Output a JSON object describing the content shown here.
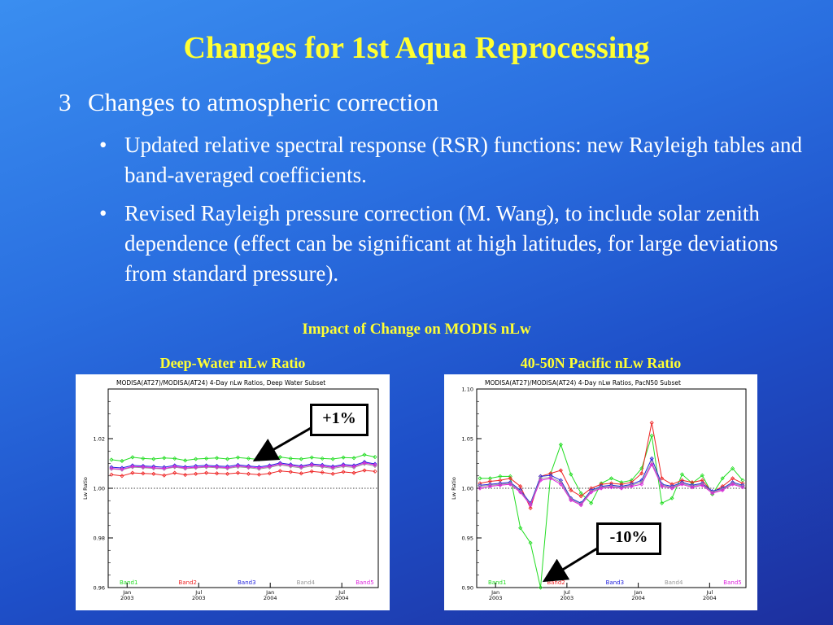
{
  "slide": {
    "title": "Changes for 1st Aqua Reprocessing",
    "heading_num": "3",
    "heading": "Changes to atmospheric correction",
    "bullets": [
      "Updated relative spectral response (RSR) functions: new Rayleigh tables and band-averaged coefficients.",
      "Revised Rayleigh pressure correction (M. Wang), to include solar zenith dependence (effect can be significant at high latitudes, for large deviations from standard pressure)."
    ],
    "bullet_symbol": "•",
    "impact_title": "Impact of Change on MODIS nLw"
  },
  "chart_data": [
    {
      "type": "line",
      "title": "Deep-Water nLw Ratio",
      "plot_title": "MODISA(AT27)/MODISA(AT24)  4-Day nLw Ratios, Deep Water Subset",
      "ylabel": "Lw Ratio",
      "ylim": [
        0.96,
        1.04
      ],
      "yticks": [
        "0.96",
        "0.98",
        "1.00",
        "1.02"
      ],
      "ytick_values": [
        0.96,
        0.98,
        1.0,
        1.02
      ],
      "xticks": [
        {
          "top": "Jan",
          "bottom": "2003"
        },
        {
          "top": "Jul",
          "bottom": "2003"
        },
        {
          "top": "Jan",
          "bottom": "2004"
        },
        {
          "top": "Jul",
          "bottom": "2004"
        }
      ],
      "reference_line": 1.0,
      "callout": "+1%",
      "series": [
        {
          "name": "Band1",
          "color": "#22dd22",
          "values": [
            1.0115,
            1.011,
            1.0125,
            1.012,
            1.0118,
            1.0122,
            1.012,
            1.0112,
            1.0118,
            1.012,
            1.0122,
            1.0118,
            1.0124,
            1.012,
            1.0116,
            1.0122,
            1.0126,
            1.012,
            1.0118,
            1.0124,
            1.012,
            1.0118,
            1.0124,
            1.0122,
            1.0135,
            1.0126
          ]
        },
        {
          "name": "Band2",
          "color": "#ee2222",
          "values": [
            1.0055,
            1.005,
            1.0062,
            1.006,
            1.0058,
            1.0052,
            1.0062,
            1.0054,
            1.0058,
            1.0062,
            1.006,
            1.0058,
            1.0062,
            1.0058,
            1.0055,
            1.006,
            1.007,
            1.0066,
            1.006,
            1.0068,
            1.0064,
            1.0058,
            1.0066,
            1.0062,
            1.0072,
            1.0068
          ]
        },
        {
          "name": "Band3",
          "color": "#2222dd",
          "values": [
            1.0085,
            1.0082,
            1.0092,
            1.009,
            1.0088,
            1.0085,
            1.0092,
            1.0086,
            1.009,
            1.0092,
            1.009,
            1.0088,
            1.0094,
            1.009,
            1.0086,
            1.0092,
            1.0102,
            1.0096,
            1.009,
            1.0098,
            1.0094,
            1.0088,
            1.0096,
            1.0092,
            1.0106,
            1.0098
          ]
        },
        {
          "name": "Band4",
          "color": "#999999",
          "values": [
            1.0078,
            1.0075,
            1.0085,
            1.0083,
            1.008,
            1.0078,
            1.0085,
            1.0079,
            1.0082,
            1.0085,
            1.0083,
            1.008,
            1.0086,
            1.0083,
            1.0078,
            1.0084,
            1.0094,
            1.0088,
            1.0082,
            1.009,
            1.0086,
            1.008,
            1.0088,
            1.0084,
            1.0098,
            1.009
          ]
        },
        {
          "name": "Band5",
          "color": "#dd22dd",
          "values": [
            1.008,
            1.0077,
            1.0088,
            1.0086,
            1.0083,
            1.008,
            1.0088,
            1.0082,
            1.0085,
            1.0088,
            1.0086,
            1.0083,
            1.009,
            1.0086,
            1.0082,
            1.0088,
            1.0098,
            1.0092,
            1.0086,
            1.0094,
            1.009,
            1.0084,
            1.0092,
            1.0088,
            1.0102,
            1.0094
          ]
        }
      ]
    },
    {
      "type": "line",
      "title": "40-50N Pacific nLw Ratio",
      "plot_title": "MODISA(AT27)/MODISA(AT24)  4-Day nLw Ratios, PacN50 Subset",
      "ylabel": "Lw Ratio",
      "ylim": [
        0.9,
        1.1
      ],
      "yticks": [
        "0.90",
        "0.95",
        "1.00",
        "1.05",
        "1.10"
      ],
      "ytick_values": [
        0.9,
        0.95,
        1.0,
        1.05,
        1.1
      ],
      "xticks": [
        {
          "top": "Jan",
          "bottom": "2003"
        },
        {
          "top": "Jul",
          "bottom": "2003"
        },
        {
          "top": "Jan",
          "bottom": "2004"
        },
        {
          "top": "Jul",
          "bottom": "2004"
        }
      ],
      "reference_line": 1.0,
      "callout": "-10%",
      "series": [
        {
          "name": "Band1",
          "color": "#22dd22",
          "values": [
            1.01,
            1.01,
            1.012,
            1.012,
            0.96,
            0.945,
            0.9,
            1.015,
            1.044,
            1.014,
            0.995,
            0.985,
            1.005,
            1.01,
            1.006,
            1.008,
            1.02,
            1.053,
            0.985,
            0.99,
            1.014,
            1.005,
            1.013,
            0.994,
            1.01,
            1.02,
            1.008
          ]
        },
        {
          "name": "Band2",
          "color": "#ee2222",
          "values": [
            1.005,
            1.007,
            1.008,
            1.01,
            1.002,
            0.98,
            1.012,
            1.015,
            1.018,
            0.998,
            0.992,
            1.0,
            1.004,
            1.005,
            1.004,
            1.006,
            1.015,
            1.066,
            1.01,
            1.004,
            1.008,
            1.006,
            1.008,
            0.996,
            1.002,
            1.01,
            1.005
          ]
        },
        {
          "name": "Band3",
          "color": "#2222dd",
          "values": [
            1.003,
            1.004,
            1.005,
            1.006,
            0.998,
            0.985,
            1.012,
            1.013,
            1.008,
            0.99,
            0.985,
            0.998,
            1.002,
            1.003,
            1.002,
            1.004,
            1.008,
            1.03,
            1.004,
            1.002,
            1.006,
            1.003,
            1.005,
            0.997,
            1.0,
            1.006,
            1.003
          ]
        },
        {
          "name": "Band4",
          "color": "#999999",
          "values": [
            1.002,
            1.003,
            1.004,
            1.005,
            0.997,
            0.984,
            1.01,
            1.011,
            1.006,
            0.989,
            0.984,
            0.997,
            1.001,
            1.002,
            1.001,
            1.003,
            1.006,
            1.026,
            1.003,
            1.001,
            1.005,
            1.002,
            1.004,
            0.996,
            0.999,
            1.005,
            1.002
          ]
        },
        {
          "name": "Band5",
          "color": "#dd22dd",
          "values": [
            1.0,
            1.002,
            1.003,
            1.004,
            0.996,
            0.983,
            1.008,
            1.01,
            1.004,
            0.988,
            0.983,
            0.996,
            1.0,
            1.001,
            1.0,
            1.002,
            1.004,
            1.024,
            1.002,
            1.0,
            1.004,
            1.001,
            1.003,
            0.995,
            0.998,
            1.004,
            1.001
          ]
        }
      ]
    }
  ]
}
